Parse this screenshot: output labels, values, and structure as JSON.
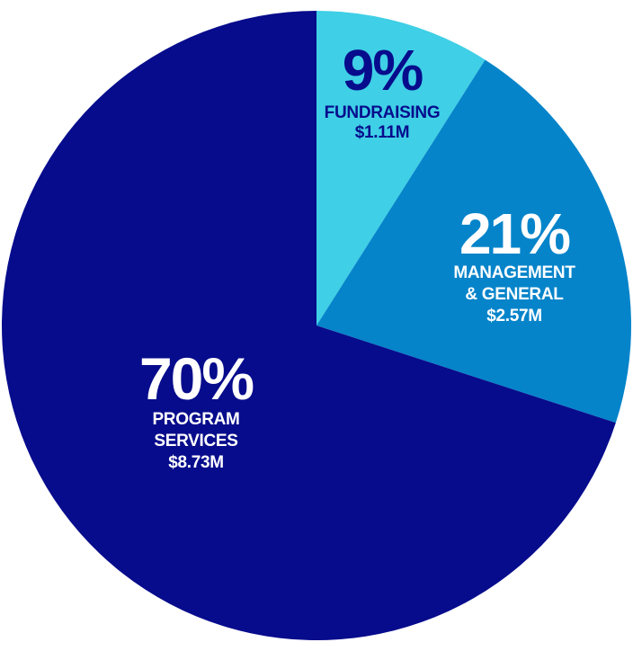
{
  "colors": {
    "fundraising": "#3fcfe6",
    "management": "#0584ca",
    "program": "#070c8c",
    "fundraising_text": "#070c8c",
    "light_text": "#ffffff"
  },
  "chart_data": {
    "type": "pie",
    "start": "12 o'clock",
    "direction": "clockwise",
    "slices": [
      {
        "key": "fundraising",
        "percent": 9,
        "percent_label": "9%",
        "label_lines": [
          "FUNDRAISING"
        ],
        "amount": "$1.11M"
      },
      {
        "key": "management",
        "percent": 21,
        "percent_label": "21%",
        "label_lines": [
          "MANAGEMENT",
          "& GENERAL"
        ],
        "amount": "$2.57M"
      },
      {
        "key": "program",
        "percent": 70,
        "percent_label": "70%",
        "label_lines": [
          "PROGRAM",
          "SERVICES"
        ],
        "amount": "$8.73M"
      }
    ]
  }
}
